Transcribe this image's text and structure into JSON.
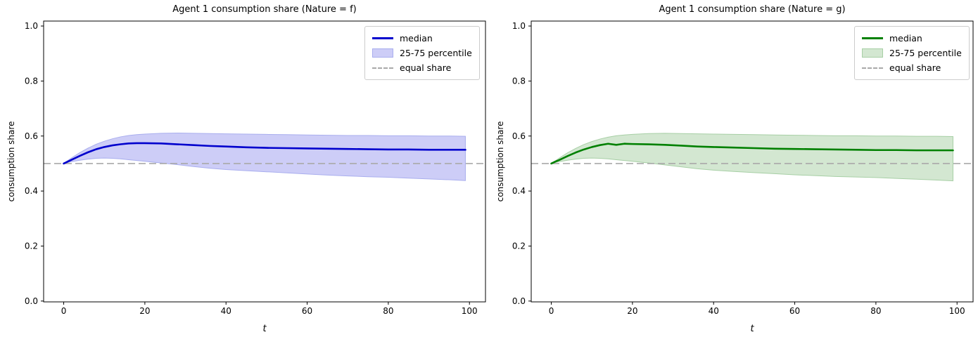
{
  "figure": {
    "background": "#ffffff"
  },
  "chart_data": [
    {
      "type": "line",
      "title": "Agent 1 consumption share (Nature = f)",
      "xlabel": "t",
      "ylabel": "consumption share",
      "xlim": [
        -4.95,
        103.95
      ],
      "ylim": [
        -0.003,
        1.018
      ],
      "xticks": [
        0,
        20,
        40,
        60,
        80,
        100
      ],
      "yticks": [
        0.0,
        0.2,
        0.4,
        0.6,
        0.8,
        1.0
      ],
      "grid": false,
      "legend_position": "upper right",
      "equal_share_y": 0.5,
      "colors": {
        "median": "#0000cd",
        "band": "#cdcdf7",
        "band_edge": "#a9aeee",
        "equal_share": "#a9a9a9",
        "frame": "#000000"
      },
      "legend_entries": [
        {
          "label": "median",
          "swatch": "line"
        },
        {
          "label": "25-75 percentile",
          "swatch": "patch"
        },
        {
          "label": "equal share",
          "swatch": "dash"
        }
      ],
      "x": [
        0,
        1,
        2,
        4,
        6,
        8,
        10,
        12,
        14,
        16,
        18,
        20,
        24,
        28,
        32,
        36,
        40,
        45,
        50,
        55,
        60,
        65,
        70,
        75,
        80,
        85,
        90,
        95,
        99
      ],
      "series": [
        {
          "name": "median",
          "values": [
            0.5,
            0.507,
            0.514,
            0.528,
            0.541,
            0.552,
            0.56,
            0.566,
            0.57,
            0.573,
            0.574,
            0.574,
            0.573,
            0.57,
            0.567,
            0.564,
            0.562,
            0.559,
            0.557,
            0.556,
            0.555,
            0.554,
            0.553,
            0.552,
            0.551,
            0.551,
            0.55,
            0.55,
            0.55
          ]
        },
        {
          "name": "p75",
          "values": [
            0.5,
            0.511,
            0.521,
            0.54,
            0.556,
            0.57,
            0.581,
            0.59,
            0.597,
            0.602,
            0.605,
            0.607,
            0.61,
            0.611,
            0.61,
            0.609,
            0.608,
            0.607,
            0.606,
            0.605,
            0.604,
            0.603,
            0.602,
            0.602,
            0.601,
            0.601,
            0.6,
            0.6,
            0.599
          ]
        },
        {
          "name": "p25",
          "values": [
            0.5,
            0.504,
            0.507,
            0.512,
            0.516,
            0.519,
            0.52,
            0.519,
            0.517,
            0.514,
            0.511,
            0.508,
            0.502,
            0.496,
            0.489,
            0.483,
            0.478,
            0.474,
            0.47,
            0.466,
            0.462,
            0.458,
            0.455,
            0.452,
            0.45,
            0.447,
            0.444,
            0.441,
            0.438
          ]
        }
      ]
    },
    {
      "type": "line",
      "title": "Agent 1 consumption share (Nature = g)",
      "xlabel": "t",
      "ylabel": "consumption share",
      "xlim": [
        -4.95,
        103.95
      ],
      "ylim": [
        -0.003,
        1.018
      ],
      "xticks": [
        0,
        20,
        40,
        60,
        80,
        100
      ],
      "yticks": [
        0.0,
        0.2,
        0.4,
        0.6,
        0.8,
        1.0
      ],
      "grid": false,
      "legend_position": "upper right",
      "equal_share_y": 0.5,
      "colors": {
        "median": "#008000",
        "band": "#d3e7d1",
        "band_edge": "#a7cfa5",
        "equal_share": "#a9a9a9",
        "frame": "#000000"
      },
      "legend_entries": [
        {
          "label": "median",
          "swatch": "line"
        },
        {
          "label": "25-75 percentile",
          "swatch": "patch"
        },
        {
          "label": "equal share",
          "swatch": "dash"
        }
      ],
      "x": [
        0,
        1,
        2,
        4,
        6,
        8,
        10,
        12,
        14,
        16,
        18,
        20,
        24,
        28,
        32,
        36,
        40,
        45,
        50,
        55,
        60,
        65,
        70,
        75,
        80,
        85,
        90,
        95,
        99
      ],
      "series": [
        {
          "name": "median",
          "values": [
            0.5,
            0.507,
            0.513,
            0.527,
            0.54,
            0.551,
            0.56,
            0.567,
            0.572,
            0.568,
            0.572,
            0.571,
            0.57,
            0.568,
            0.565,
            0.562,
            0.56,
            0.558,
            0.556,
            0.554,
            0.553,
            0.552,
            0.551,
            0.55,
            0.549,
            0.549,
            0.548,
            0.548,
            0.548
          ]
        },
        {
          "name": "p75",
          "values": [
            0.5,
            0.51,
            0.52,
            0.539,
            0.555,
            0.569,
            0.58,
            0.589,
            0.596,
            0.601,
            0.604,
            0.606,
            0.609,
            0.61,
            0.609,
            0.608,
            0.607,
            0.606,
            0.605,
            0.604,
            0.603,
            0.602,
            0.601,
            0.601,
            0.6,
            0.6,
            0.599,
            0.599,
            0.598
          ]
        },
        {
          "name": "p25",
          "values": [
            0.5,
            0.504,
            0.507,
            0.512,
            0.516,
            0.519,
            0.52,
            0.519,
            0.517,
            0.514,
            0.511,
            0.508,
            0.502,
            0.495,
            0.488,
            0.481,
            0.476,
            0.471,
            0.467,
            0.463,
            0.459,
            0.456,
            0.453,
            0.451,
            0.449,
            0.446,
            0.443,
            0.44,
            0.437
          ]
        }
      ]
    }
  ]
}
